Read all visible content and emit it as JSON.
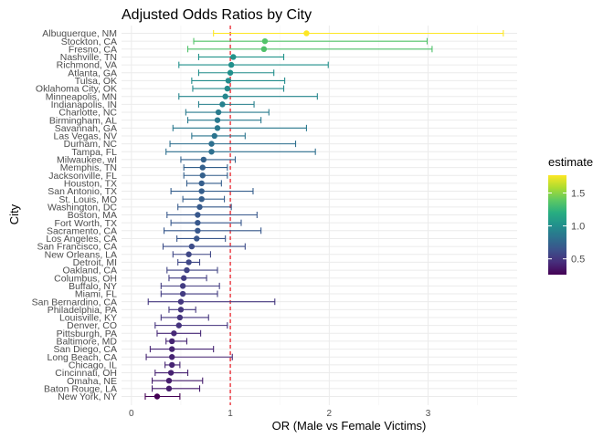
{
  "chart_data": {
    "type": "errorbar-dot",
    "title": "Adjusted Odds Ratios by City",
    "xlabel": "OR (Male vs Female Victims)",
    "ylabel": "City",
    "xlim": [
      -0.1,
      3.9
    ],
    "x_ticks": [
      0,
      1,
      2,
      3
    ],
    "x_tick_labels": [
      "0",
      "1",
      "2",
      "3"
    ],
    "reference_line": {
      "x": 1,
      "color": "#e8121c",
      "style": "dashed"
    },
    "color_scale": {
      "name": "estimate",
      "palette": "viridis",
      "range": [
        0.26,
        1.77
      ],
      "ticks": [
        0.5,
        1.0,
        1.5
      ],
      "tick_labels": [
        "0.5",
        "1.0",
        "1.5"
      ]
    },
    "grid": true,
    "legend_position": "right",
    "cities": [
      "Albuquerque, NM",
      "Stockton, CA",
      "Fresno, CA",
      "Nashville, TN",
      "Richmond, VA",
      "Atlanta, GA",
      "Tulsa, OK",
      "Oklahoma City, OK",
      "Minneapolis, MN",
      "Indianapolis, IN",
      "Charlotte, NC",
      "Birmingham, AL",
      "Savannah, GA",
      "Las Vegas, NV",
      "Durham, NC",
      "Tampa, FL",
      "Milwaukee, wI",
      "Memphis, TN",
      "Jacksonville, FL",
      "Houston, TX",
      "San Antonio, TX",
      "St. Louis, MO",
      "Washington, DC",
      "Boston, MA",
      "Fort Worth, TX",
      "Sacramento, CA",
      "Los Angeles, CA",
      "San Francisco, CA",
      "New Orleans, LA",
      "Detroit, MI",
      "Oakland, CA",
      "Columbus, OH",
      "Buffalo, NY",
      "Miami, FL",
      "San Bernardino, CA",
      "Philadelphia, PA",
      "Louisville, KY",
      "Denver, CO",
      "Pittsburgh, PA",
      "Baltimore, MD",
      "San Diego, CA",
      "Long Beach, CA",
      "Chicago, IL",
      "Cincinnati, OH",
      "Omaha, NE",
      "Baton Rouge, LA",
      "New York, NY"
    ],
    "estimate": [
      1.77,
      1.35,
      1.34,
      1.03,
      1.01,
      1.0,
      0.98,
      0.97,
      0.95,
      0.92,
      0.88,
      0.87,
      0.87,
      0.84,
      0.81,
      0.81,
      0.73,
      0.72,
      0.72,
      0.71,
      0.71,
      0.71,
      0.69,
      0.67,
      0.67,
      0.67,
      0.66,
      0.61,
      0.58,
      0.58,
      0.56,
      0.53,
      0.52,
      0.52,
      0.5,
      0.5,
      0.49,
      0.48,
      0.43,
      0.41,
      0.41,
      0.41,
      0.41,
      0.4,
      0.38,
      0.38,
      0.26
    ],
    "lower": [
      0.83,
      0.63,
      0.57,
      0.68,
      0.48,
      0.68,
      0.61,
      0.62,
      0.48,
      0.68,
      0.55,
      0.57,
      0.42,
      0.61,
      0.39,
      0.35,
      0.5,
      0.53,
      0.53,
      0.56,
      0.4,
      0.52,
      0.47,
      0.36,
      0.4,
      0.33,
      0.46,
      0.32,
      0.42,
      0.47,
      0.36,
      0.38,
      0.3,
      0.3,
      0.17,
      0.38,
      0.3,
      0.24,
      0.26,
      0.35,
      0.19,
      0.15,
      0.34,
      0.24,
      0.21,
      0.21,
      0.14
    ],
    "upper": [
      3.76,
      2.99,
      3.04,
      1.54,
      1.99,
      1.44,
      1.55,
      1.54,
      1.88,
      1.24,
      1.39,
      1.31,
      1.77,
      1.15,
      1.66,
      1.86,
      1.05,
      0.97,
      0.97,
      0.91,
      1.23,
      0.94,
      1.01,
      1.27,
      1.11,
      1.31,
      0.95,
      1.15,
      0.8,
      0.69,
      0.87,
      0.76,
      0.89,
      0.87,
      1.45,
      0.65,
      0.78,
      0.97,
      0.7,
      0.56,
      0.83,
      1.02,
      0.49,
      0.57,
      0.72,
      0.69,
      0.49
    ]
  }
}
